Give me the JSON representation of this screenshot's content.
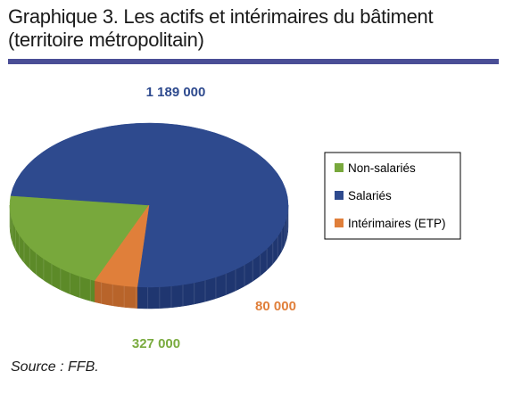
{
  "title_line1": "Graphique 3. Les actifs et intérimaires du bâtiment",
  "title_line2": "(territoire métropolitain)",
  "source": "Source : FFB.",
  "colors": {
    "rule": "#4a4e96"
  },
  "chart_data": {
    "type": "pie",
    "style": "3d",
    "legend_position": "right",
    "slices": [
      {
        "name": "Non-salariés",
        "value": 327000,
        "label": "327 000",
        "color": "#78a83c",
        "side_color": "#5c8a28",
        "label_color": "#7aab3f"
      },
      {
        "name": "Salariés",
        "value": 1189000,
        "label": "1 189 000",
        "color": "#2e4a8e",
        "side_color": "#1f3670",
        "label_color": "#2e4a8e"
      },
      {
        "name": "Intérimaires (ETP)",
        "value": 80000,
        "label": "80 000",
        "color": "#e07f3a",
        "side_color": "#b8642a",
        "label_color": "#e07f3a"
      }
    ]
  }
}
